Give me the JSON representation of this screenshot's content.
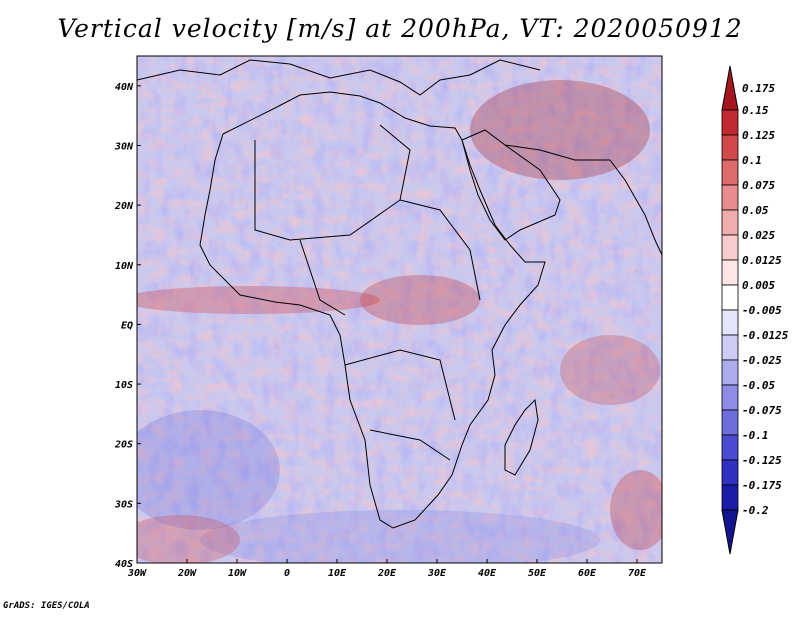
{
  "title": "Vertical velocity [m/s] at 200hPa, VT: 2020050912",
  "credit": "GrADS: IGES/COLA",
  "map": {
    "lon_range": [
      -30,
      75
    ],
    "lat_range": [
      -40,
      45
    ],
    "lat_ticks": [
      {
        "value": 40,
        "label": "40N"
      },
      {
        "value": 30,
        "label": "30N"
      },
      {
        "value": 20,
        "label": "20N"
      },
      {
        "value": 10,
        "label": "10N"
      },
      {
        "value": 0,
        "label": "EQ"
      },
      {
        "value": -10,
        "label": "10S"
      },
      {
        "value": -20,
        "label": "20S"
      },
      {
        "value": -30,
        "label": "30S"
      },
      {
        "value": -40,
        "label": "40S"
      }
    ],
    "lon_ticks": [
      {
        "value": -30,
        "label": "30W"
      },
      {
        "value": -20,
        "label": "20W"
      },
      {
        "value": -10,
        "label": "10W"
      },
      {
        "value": 0,
        "label": "0"
      },
      {
        "value": 10,
        "label": "10E"
      },
      {
        "value": 20,
        "label": "20E"
      },
      {
        "value": 30,
        "label": "30E"
      },
      {
        "value": 40,
        "label": "40E"
      },
      {
        "value": 50,
        "label": "50E"
      },
      {
        "value": 60,
        "label": "60E"
      },
      {
        "value": 70,
        "label": "70E"
      }
    ]
  },
  "colorbar": {
    "labels": [
      "0.175",
      "0.15",
      "0.125",
      "0.1",
      "0.075",
      "0.05",
      "0.025",
      "0.0125",
      "0.005",
      "-0.005",
      "-0.0125",
      "-0.025",
      "-0.05",
      "-0.075",
      "-0.1",
      "-0.125",
      "-0.175",
      "-0.2"
    ],
    "colors": [
      "#a6161e",
      "#c02a30",
      "#d2494c",
      "#de6a6c",
      "#e88c8d",
      "#f0adad",
      "#f7cccc",
      "#fce6e6",
      "#ffffff",
      "#e6e6fb",
      "#ccccf5",
      "#adadee",
      "#8d8de6",
      "#6d6ddd",
      "#4c4cd2",
      "#3030c2",
      "#1c1caa",
      "#141490"
    ]
  }
}
